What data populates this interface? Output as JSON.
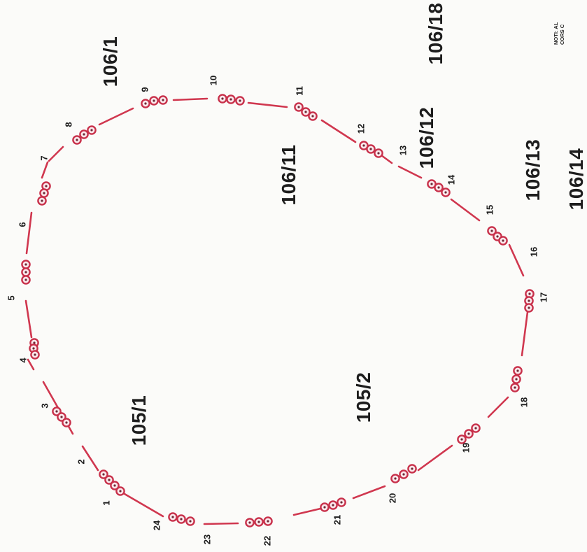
{
  "parcels": [
    {
      "id": "lot-106-1",
      "label": "106/1"
    },
    {
      "id": "lot-106-18",
      "label": "106/18"
    },
    {
      "id": "lot-106-11",
      "label": "106/11"
    },
    {
      "id": "lot-106-12",
      "label": "106/12"
    },
    {
      "id": "lot-106-13",
      "label": "106/13"
    },
    {
      "id": "lot-106-14",
      "label": "106/14"
    },
    {
      "id": "lot-105-1",
      "label": "105/1"
    },
    {
      "id": "lot-105-2",
      "label": "105/2"
    }
  ],
  "boundary_points": [
    "1",
    "2",
    "3",
    "4",
    "5",
    "6",
    "7",
    "8",
    "9",
    "10",
    "11",
    "12",
    "13",
    "14",
    "15",
    "16",
    "17",
    "18",
    "19",
    "20",
    "21",
    "22",
    "23",
    "24"
  ],
  "note": {
    "line1": "NOTI: AL",
    "line2": "CORS C"
  },
  "colors": {
    "boundary": "#d0374f",
    "marker_ring": "#c8304a",
    "text": "#1d1d1d"
  }
}
